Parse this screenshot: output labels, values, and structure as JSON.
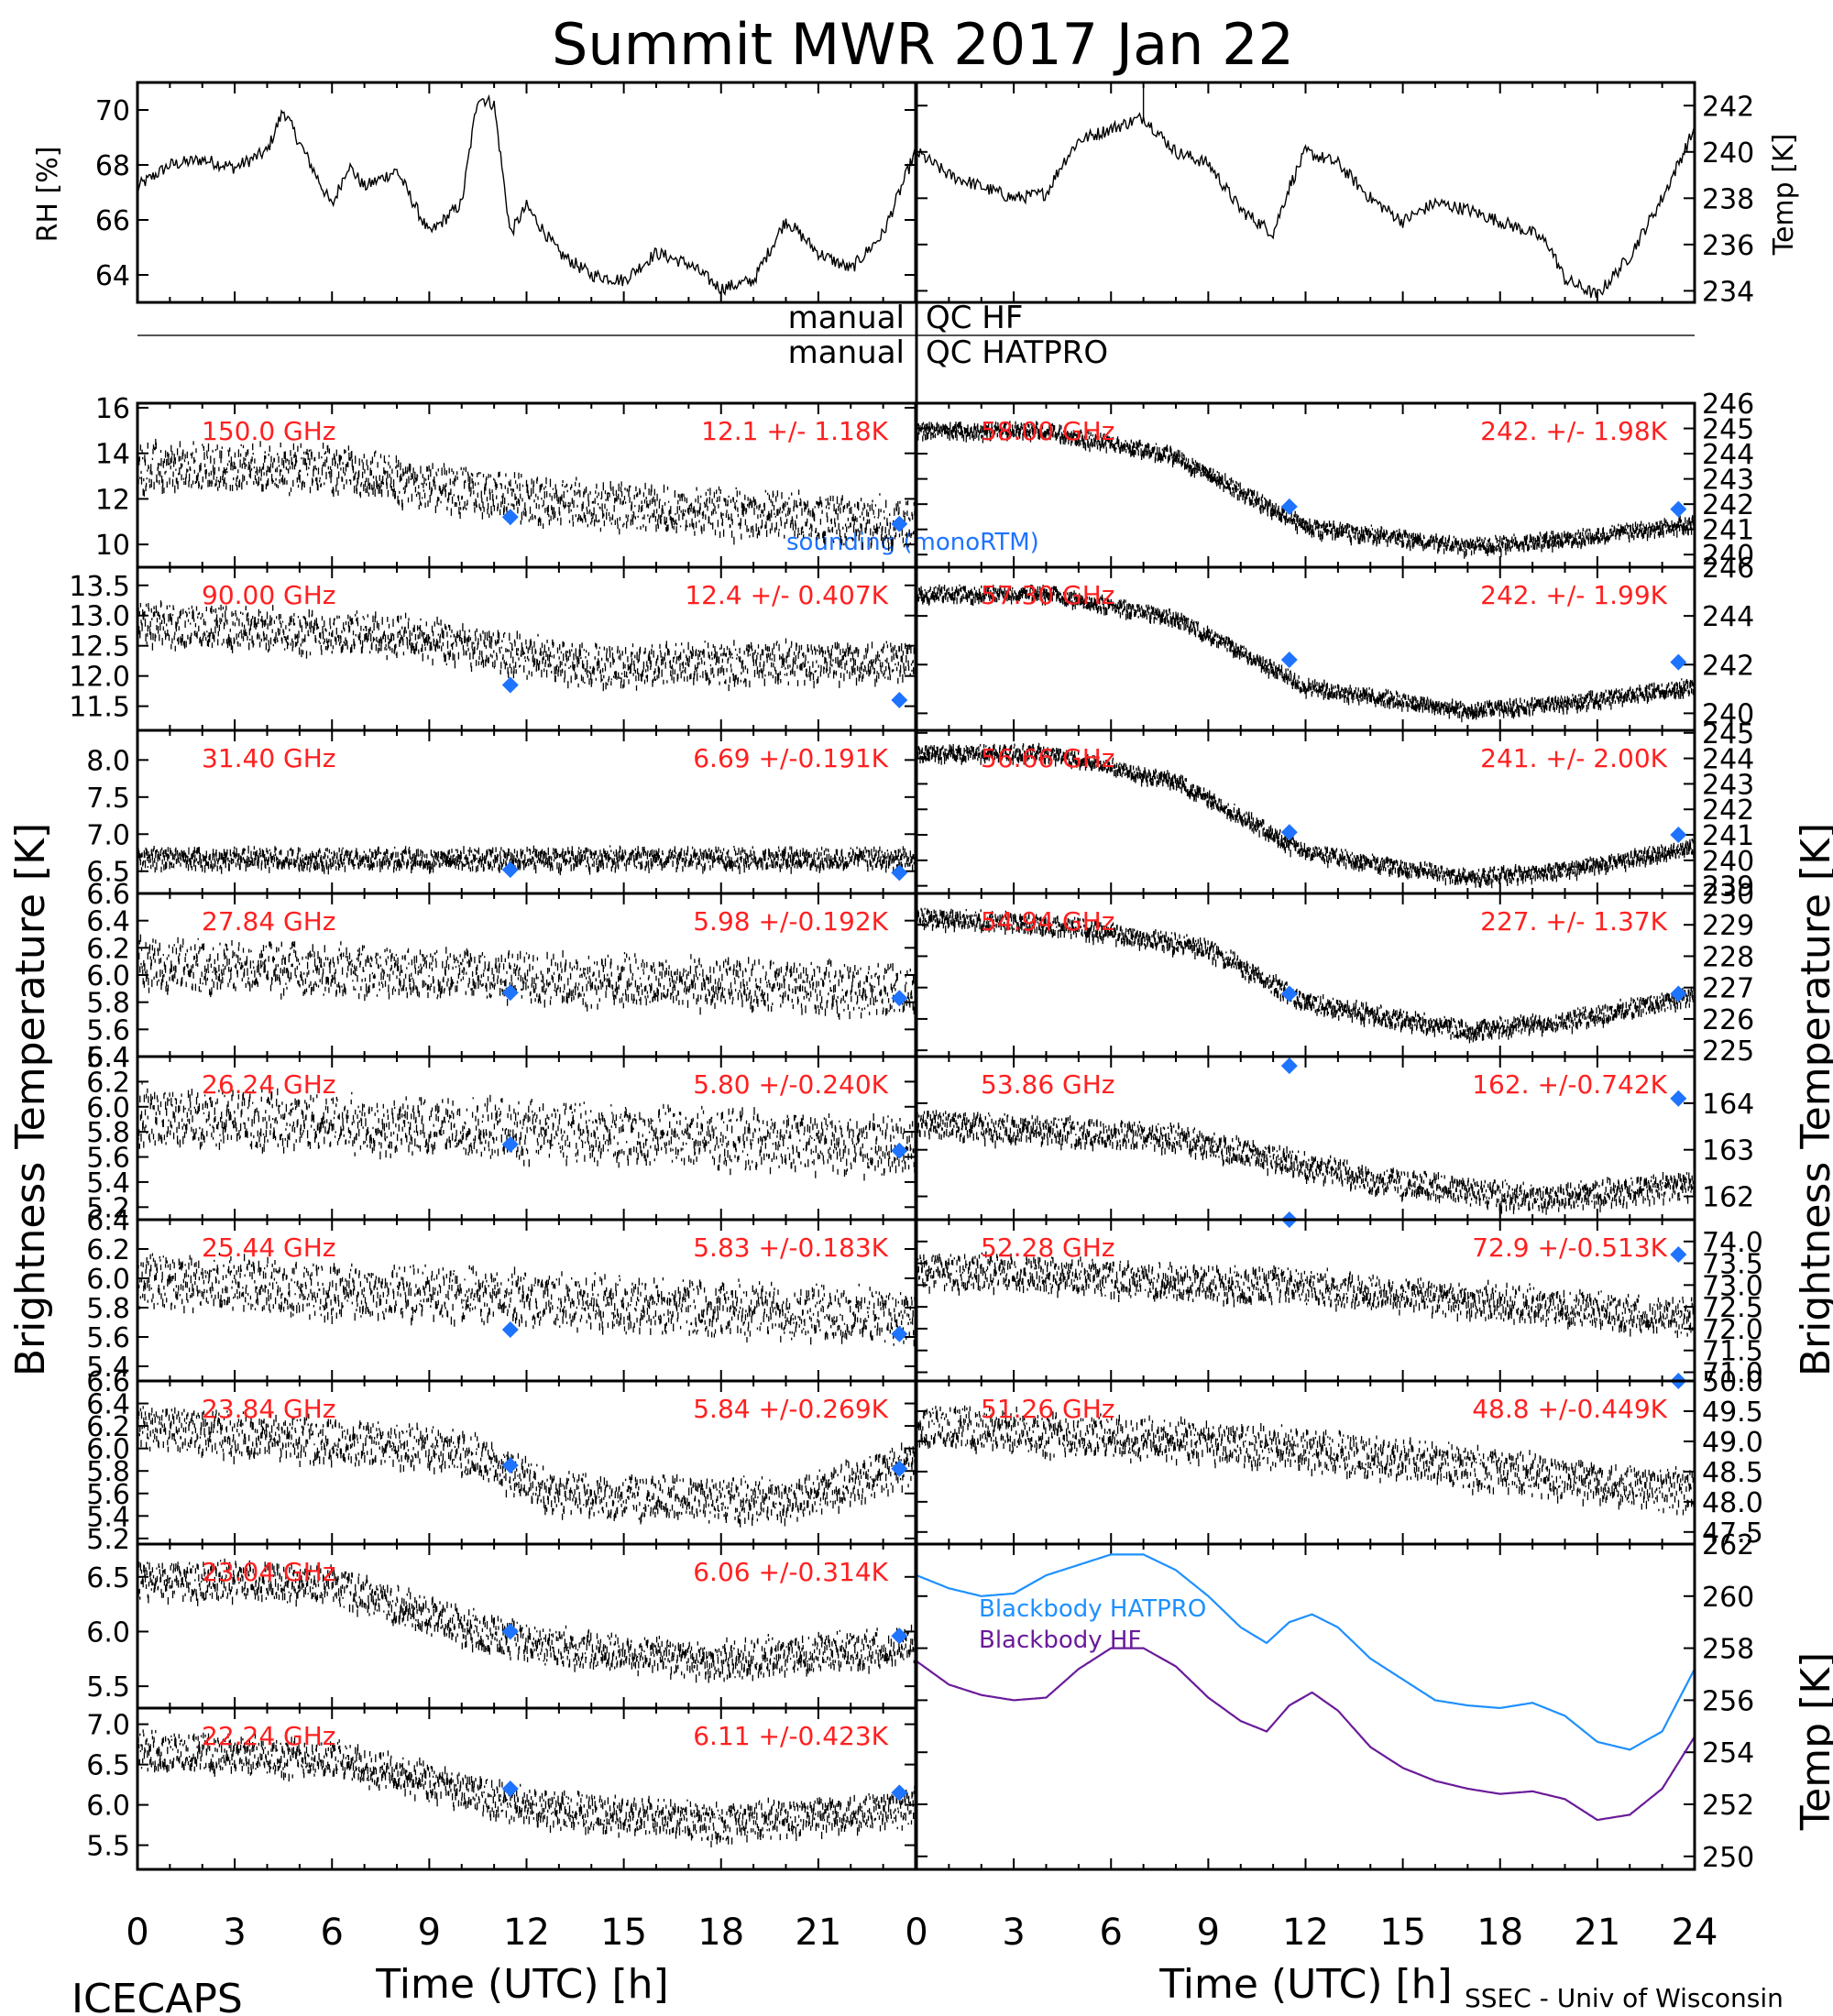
{
  "title": "Summit MWR 2017 Jan 22",
  "footer": {
    "left": "ICECAPS",
    "right": "SSEC - Univ of Wisconsin"
  },
  "qc": {
    "hf_label": "manual",
    "hf_text": "QC HF",
    "hatpro_label": "manual",
    "hatpro_text": "QC HATPRO"
  },
  "axis_titles": {
    "rh": "RH [%]",
    "temp_top": "Temp [K]",
    "left_tb": "Brightness Temperature [K]",
    "right_tb": "Brightness Temperature [K]",
    "temp_bottom": "Temp [K]",
    "x_left": "Time (UTC) [h]",
    "x_right": "Time (UTC) [h]"
  },
  "legend": {
    "sounding": "sounding (monoRTM)",
    "bb_hatpro": "Blackbody HATPRO",
    "bb_hf": "Blackbody HF"
  },
  "colors": {
    "stats": "#ff2020",
    "sounding": "#1e73ff",
    "bb_hatpro": "#1e90ff",
    "bb_hf": "#6a1b9a",
    "trace": "#000000"
  },
  "chart_data": [
    {
      "id": "rh",
      "type": "line",
      "xlim": [
        0,
        24
      ],
      "ylim": [
        63,
        71
      ],
      "yticks": [
        "64",
        "66",
        "68",
        "70"
      ],
      "ytick_values": [
        64,
        66,
        68,
        70
      ],
      "ylabel": "RH [%]",
      "x": [
        0,
        1,
        2,
        3,
        4,
        4.5,
        5,
        6,
        6.5,
        7,
        8,
        9,
        10,
        10.5,
        11,
        11.5,
        12,
        13,
        14,
        15,
        16,
        17,
        18,
        19,
        20,
        21,
        22,
        23,
        24
      ],
      "values": [
        67.2,
        68,
        68.2,
        67.9,
        68.5,
        70,
        68.8,
        66.5,
        68,
        67.2,
        67.8,
        65.5,
        66.6,
        70.5,
        70.2,
        65.5,
        66.5,
        64.8,
        64,
        63.8,
        64.8,
        64.4,
        63.5,
        63.8,
        66,
        64.8,
        64.2,
        65.5,
        68.5
      ]
    },
    {
      "id": "temp",
      "type": "line",
      "xlim": [
        0,
        24
      ],
      "ylim": [
        233.5,
        243
      ],
      "yticks": [
        "234",
        "236",
        "238",
        "240",
        "242"
      ],
      "ytick_values": [
        234,
        236,
        238,
        240,
        242
      ],
      "ylabel": "Temp [K]",
      "x": [
        0,
        1,
        2,
        3,
        4,
        4.5,
        5,
        6,
        7,
        8,
        9,
        10,
        11,
        11.5,
        12,
        13,
        14,
        15,
        16,
        17,
        18,
        19,
        19.5,
        20,
        21,
        22,
        23,
        24
      ],
      "values": [
        240,
        239,
        238.5,
        238,
        238.2,
        239.5,
        240.5,
        241,
        241.5,
        240,
        239.5,
        237.5,
        236.5,
        238.5,
        240,
        239.5,
        238,
        237,
        237.8,
        237.5,
        237,
        236.5,
        236,
        234.5,
        233.8,
        235.5,
        238,
        241
      ],
      "spike_x": 7,
      "spike_value": 243
    },
    {
      "id": "qc",
      "type": "table",
      "rows": [
        "manual QC HF",
        "manual QC HATPRO"
      ]
    },
    {
      "type": "scatter",
      "id": "hf150",
      "frequency": "150.0 GHz",
      "stats": "12.1 +/- 1.18K",
      "ylim": [
        9,
        16.2
      ],
      "yticks": [
        "10",
        "12",
        "14",
        "16"
      ],
      "ytick_values": [
        10,
        12,
        14,
        16
      ],
      "trend": [
        [
          0,
          13.5
        ],
        [
          6,
          13.4
        ],
        [
          12,
          12
        ],
        [
          24,
          11
        ]
      ],
      "noise": 0.9,
      "sounding": [
        11.2,
        10.9
      ]
    },
    {
      "type": "scatter",
      "id": "hf090",
      "frequency": "90.00 GHz",
      "stats": "12.4 +/- 0.407K",
      "ylim": [
        11.1,
        13.8
      ],
      "yticks": [
        "11.5",
        "12.0",
        "12.5",
        "13.0",
        "13.5"
      ],
      "ytick_values": [
        11.5,
        12,
        12.5,
        13,
        13.5
      ],
      "trend": [
        [
          0,
          12.9
        ],
        [
          8,
          12.7
        ],
        [
          14,
          12.2
        ],
        [
          24,
          12.3
        ]
      ],
      "noise": 0.3,
      "sounding": [
        11.85,
        11.6
      ]
    },
    {
      "type": "scatter",
      "id": "hp3140",
      "frequency": "31.40 GHz",
      "stats": "6.69 +/-0.191K",
      "ylim": [
        6.2,
        8.4
      ],
      "yticks": [
        "6.5",
        "7.0",
        "7.5",
        "8.0"
      ],
      "ytick_values": [
        6.5,
        7,
        7.5,
        8
      ],
      "trend": [
        [
          0,
          6.7
        ],
        [
          24,
          6.7
        ]
      ],
      "noise": 0.12,
      "sounding": [
        6.52,
        6.48
      ]
    },
    {
      "type": "scatter",
      "id": "hp2784",
      "frequency": "27.84 GHz",
      "stats": "5.98 +/-0.192K",
      "ylim": [
        5.4,
        6.6
      ],
      "yticks": [
        "5.4",
        "5.6",
        "5.8",
        "6.0",
        "6.2",
        "6.4",
        "6.6"
      ],
      "ytick_values": [
        5.4,
        5.6,
        5.8,
        6,
        6.2,
        6.4,
        6.6
      ],
      "trend": [
        [
          0,
          6.1
        ],
        [
          24,
          5.9
        ]
      ],
      "noise": 0.16,
      "sounding": [
        5.87,
        5.83
      ]
    },
    {
      "type": "scatter",
      "id": "hp2624",
      "frequency": "26.24 GHz",
      "stats": "5.80 +/-0.240K",
      "ylim": [
        5.1,
        6.4
      ],
      "yticks": [
        "5.2",
        "5.4",
        "5.6",
        "5.8",
        "6.0",
        "6.2",
        "6.4"
      ],
      "ytick_values": [
        5.2,
        5.4,
        5.6,
        5.8,
        6,
        6.2,
        6.4
      ],
      "trend": [
        [
          0,
          5.95
        ],
        [
          24,
          5.7
        ]
      ],
      "noise": 0.2,
      "sounding": [
        5.7,
        5.65
      ]
    },
    {
      "type": "scatter",
      "id": "hp2544",
      "frequency": "25.44 GHz",
      "stats": "5.83 +/-0.183K",
      "ylim": [
        5.3,
        6.4
      ],
      "yticks": [
        "5.4",
        "5.6",
        "5.8",
        "6.0",
        "6.2",
        "6.4"
      ],
      "ytick_values": [
        5.4,
        5.6,
        5.8,
        6,
        6.2,
        6.4
      ],
      "trend": [
        [
          0,
          6
        ],
        [
          24,
          5.75
        ]
      ],
      "noise": 0.16,
      "sounding": [
        5.65,
        5.62
      ]
    },
    {
      "type": "scatter",
      "id": "hp2384",
      "frequency": "23.84 GHz",
      "stats": "5.84 +/-0.269K",
      "ylim": [
        5.15,
        6.6
      ],
      "yticks": [
        "5.2",
        "5.4",
        "5.6",
        "5.8",
        "6.0",
        "6.2",
        "6.4",
        "6.6"
      ],
      "ytick_values": [
        5.2,
        5.4,
        5.6,
        5.8,
        6,
        6.2,
        6.4,
        6.6
      ],
      "trend": [
        [
          0,
          6.2
        ],
        [
          10,
          6.0
        ],
        [
          13,
          5.6
        ],
        [
          20,
          5.55
        ],
        [
          24,
          5.9
        ]
      ],
      "noise": 0.17,
      "sounding": [
        5.85,
        5.82
      ]
    },
    {
      "type": "scatter",
      "id": "hp2304",
      "frequency": "23.04 GHz",
      "stats": "6.06 +/-0.314K",
      "ylim": [
        5.3,
        6.8
      ],
      "yticks": [
        "5.5",
        "6.0",
        "6.5"
      ],
      "ytick_values": [
        5.5,
        6,
        6.5
      ],
      "trend": [
        [
          0,
          6.5
        ],
        [
          6,
          6.45
        ],
        [
          12,
          5.9
        ],
        [
          18,
          5.75
        ],
        [
          24,
          5.9
        ]
      ],
      "noise": 0.15,
      "sounding": [
        6.0,
        5.96
      ]
    },
    {
      "type": "scatter",
      "id": "hp2224",
      "frequency": "22.24 GHz",
      "stats": "6.11 +/-0.423K",
      "ylim": [
        5.2,
        7.2
      ],
      "yticks": [
        "5.5",
        "6.0",
        "6.5",
        "7.0"
      ],
      "ytick_values": [
        5.5,
        6,
        6.5,
        7
      ],
      "trend": [
        [
          0,
          6.7
        ],
        [
          6,
          6.6
        ],
        [
          12,
          6.0
        ],
        [
          18,
          5.8
        ],
        [
          24,
          6.0
        ]
      ],
      "noise": 0.2,
      "sounding": [
        6.2,
        6.15
      ]
    },
    {
      "type": "scatter",
      "id": "hp5800",
      "frequency": "58.00 GHz",
      "stats": "242. +/- 1.98K",
      "ylim": [
        239.5,
        246
      ],
      "yticks": [
        "240",
        "241",
        "242",
        "243",
        "244",
        "245",
        "246"
      ],
      "ytick_values": [
        240,
        241,
        242,
        243,
        244,
        245,
        246
      ],
      "trend": [
        [
          0,
          245
        ],
        [
          4,
          245
        ],
        [
          8,
          244
        ],
        [
          12,
          241.2
        ],
        [
          17,
          240.4
        ],
        [
          20,
          240.7
        ],
        [
          24,
          241.3
        ]
      ],
      "noise": 0.25,
      "sounding": [
        241.9,
        241.8
      ]
    },
    {
      "type": "scatter",
      "id": "hp5730",
      "frequency": "57.30 GHz",
      "stats": "242. +/- 1.99K",
      "ylim": [
        239.3,
        246
      ],
      "yticks": [
        "240",
        "242",
        "244",
        "246"
      ],
      "ytick_values": [
        240,
        242,
        244,
        246
      ],
      "trend": [
        [
          0,
          245
        ],
        [
          4,
          245
        ],
        [
          8,
          244
        ],
        [
          12,
          241.2
        ],
        [
          17,
          240.2
        ],
        [
          20,
          240.5
        ],
        [
          24,
          241.2
        ]
      ],
      "noise": 0.25,
      "sounding": [
        242.2,
        242.1
      ]
    },
    {
      "type": "scatter",
      "id": "hp5666",
      "frequency": "56.66 GHz",
      "stats": "241. +/- 2.00K",
      "ylim": [
        238.7,
        245.1
      ],
      "yticks": [
        "239",
        "240",
        "241",
        "242",
        "243",
        "244",
        "245"
      ],
      "ytick_values": [
        239,
        240,
        241,
        242,
        243,
        244,
        245
      ],
      "trend": [
        [
          0,
          244.3
        ],
        [
          4,
          244.3
        ],
        [
          8,
          243.2
        ],
        [
          12,
          240.4
        ],
        [
          17,
          239.4
        ],
        [
          20,
          239.7
        ],
        [
          24,
          240.6
        ]
      ],
      "noise": 0.25,
      "sounding": [
        241.1,
        241.0
      ]
    },
    {
      "type": "scatter",
      "id": "hp5494",
      "frequency": "54.94 GHz",
      "stats": "227. +/- 1.37K",
      "ylim": [
        224.8,
        230
      ],
      "yticks": [
        "225",
        "226",
        "227",
        "228",
        "229",
        "230"
      ],
      "ytick_values": [
        225,
        226,
        227,
        228,
        229,
        230
      ],
      "trend": [
        [
          0,
          229.3
        ],
        [
          5,
          229
        ],
        [
          9,
          228.3
        ],
        [
          12,
          226.6
        ],
        [
          17,
          225.7
        ],
        [
          20,
          226.0
        ],
        [
          24,
          226.8
        ]
      ],
      "noise": 0.25,
      "sounding": [
        226.8,
        226.8
      ]
    },
    {
      "type": "scatter",
      "id": "hp5386",
      "frequency": "53.86 GHz",
      "stats": "162. +/-0.742K",
      "ylim": [
        161.5,
        165
      ],
      "yticks": [
        "162",
        "163",
        "164"
      ],
      "ytick_values": [
        162,
        163,
        164
      ],
      "trend": [
        [
          0,
          163.6
        ],
        [
          8,
          163.3
        ],
        [
          14,
          162.4
        ],
        [
          19,
          162.0
        ],
        [
          24,
          162.3
        ]
      ],
      "noise": 0.25,
      "sounding": [
        164.8,
        164.1
      ]
    },
    {
      "type": "scatter",
      "id": "hp5228",
      "frequency": "52.28 GHz",
      "stats": "72.9 +/-0.513K",
      "ylim": [
        70.8,
        74.5
      ],
      "yticks": [
        "71.0",
        "71.5",
        "72.0",
        "72.5",
        "73.0",
        "73.5",
        "74.0"
      ],
      "ytick_values": [
        71,
        71.5,
        72,
        72.5,
        73,
        73.5,
        74
      ],
      "trend": [
        [
          0,
          73.4
        ],
        [
          12,
          73.0
        ],
        [
          24,
          72.3
        ]
      ],
      "noise": 0.35,
      "sounding": [
        74.5,
        73.7
      ]
    },
    {
      "type": "scatter",
      "id": "hp5126",
      "frequency": "51.26 GHz",
      "stats": "48.8 +/-0.449K",
      "ylim": [
        47.3,
        50
      ],
      "yticks": [
        "47.5",
        "48.0",
        "48.5",
        "49.0",
        "49.5",
        "50.0"
      ],
      "ytick_values": [
        47.5,
        48,
        48.5,
        49,
        49.5,
        50
      ],
      "trend": [
        [
          0,
          49.3
        ],
        [
          12,
          48.9
        ],
        [
          24,
          48.2
        ]
      ],
      "noise": 0.3,
      "sounding": [
        null,
        50.1
      ]
    },
    {
      "type": "line",
      "id": "blackbody",
      "xlim": [
        0,
        24
      ],
      "ylim": [
        249.5,
        262
      ],
      "yticks": [
        "250",
        "252",
        "254",
        "256",
        "258",
        "260",
        "262"
      ],
      "ytick_values": [
        250,
        252,
        254,
        256,
        258,
        260,
        262
      ],
      "series": [
        {
          "name": "Blackbody HATPRO",
          "x": [
            0,
            1,
            2,
            3,
            4,
            5,
            6,
            7,
            8,
            9,
            10,
            10.8,
            11.5,
            12.2,
            13,
            14,
            15,
            16,
            17,
            18,
            19,
            20,
            21,
            22,
            23,
            24
          ],
          "values": [
            260.8,
            260.3,
            260,
            260.1,
            260.8,
            261.2,
            261.6,
            261.6,
            261,
            260,
            258.8,
            258.2,
            259,
            259.3,
            258.8,
            257.6,
            256.8,
            256,
            255.8,
            255.7,
            255.9,
            255.4,
            254.4,
            254.1,
            254.8,
            257.2
          ]
        },
        {
          "name": "Blackbody HF",
          "x": [
            0,
            1,
            2,
            3,
            4,
            5,
            6,
            7,
            8,
            9,
            10,
            10.8,
            11.5,
            12.2,
            13,
            14,
            15,
            16,
            17,
            18,
            19,
            20,
            21,
            22,
            23,
            24
          ],
          "values": [
            257.5,
            256.6,
            256.2,
            256,
            256.1,
            257.2,
            258,
            258,
            257.3,
            256.1,
            255.2,
            254.8,
            255.8,
            256.3,
            255.6,
            254.2,
            253.4,
            252.9,
            252.6,
            252.4,
            252.5,
            252.2,
            251.4,
            251.6,
            252.6,
            254.6
          ]
        }
      ]
    }
  ],
  "x_ticks_left": [
    "0",
    "3",
    "6",
    "9",
    "12",
    "15",
    "18",
    "21"
  ],
  "x_ticks_right": [
    "0",
    "3",
    "6",
    "9",
    "12",
    "15",
    "18",
    "21",
    "24"
  ]
}
